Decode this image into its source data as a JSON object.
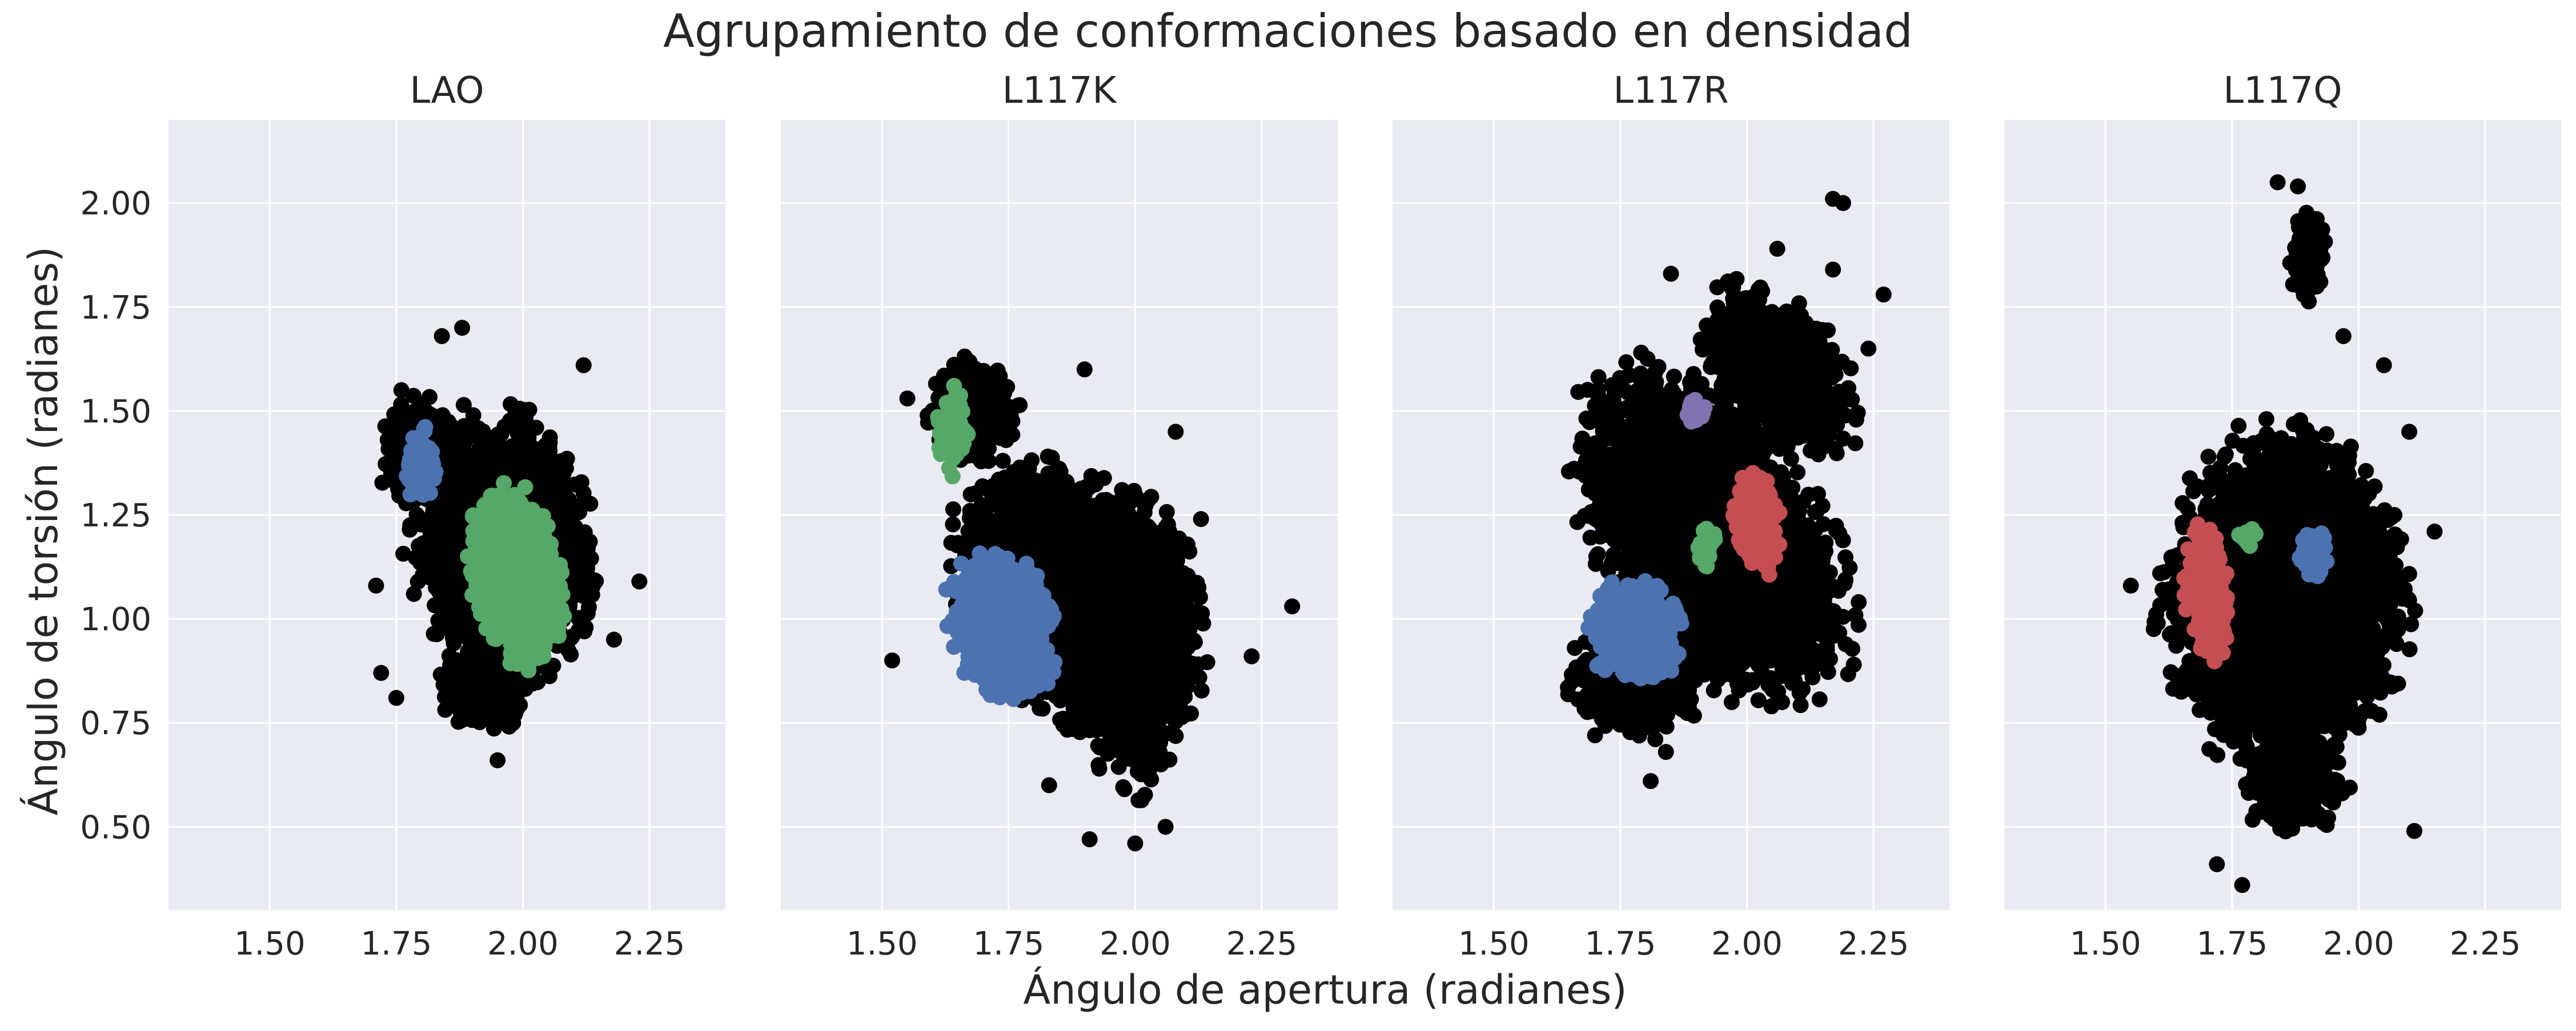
{
  "figure": {
    "suptitle": "Agrupamiento de conformaciones basado en densidad",
    "xlabel": "Ángulo de apertura (radianes)",
    "ylabel": "Ángulo de torsión (radianes)"
  },
  "colors": {
    "background": "#eaeaf2",
    "grid": "#ffffff",
    "noise": "#000000",
    "blue": "#4c72b0",
    "green": "#55a868",
    "red": "#c44e52",
    "purple": "#8172b2",
    "text": "#262626"
  },
  "chart_data": [
    {
      "type": "scatter",
      "title": "LAO",
      "xlim": [
        1.3,
        2.4
      ],
      "ylim": [
        0.3,
        2.2
      ],
      "xticks": [
        "1.50",
        "1.75",
        "2.00",
        "2.25"
      ],
      "yticks": [
        "0.50",
        "0.75",
        "1.00",
        "1.25",
        "1.50",
        "1.75",
        "2.00"
      ],
      "grid": true,
      "clusters": [
        {
          "color": "noise",
          "shape": "ellipse",
          "cx": 1.96,
          "cy": 1.17,
          "rx": 0.2,
          "ry": 0.37,
          "rot": 5,
          "n": 1300
        },
        {
          "color": "noise",
          "shape": "ellipse",
          "cx": 1.8,
          "cy": 1.4,
          "rx": 0.09,
          "ry": 0.15,
          "rot": 0,
          "n": 200
        },
        {
          "color": "noise",
          "shape": "ellipse",
          "cx": 1.93,
          "cy": 0.83,
          "rx": 0.1,
          "ry": 0.12,
          "rot": 0,
          "n": 150
        },
        {
          "color": "blue",
          "shape": "ellipse",
          "cx": 1.8,
          "cy": 1.37,
          "rx": 0.035,
          "ry": 0.1,
          "rot": 0,
          "n": 70
        },
        {
          "color": "green",
          "shape": "ellipse",
          "cx": 1.99,
          "cy": 1.1,
          "rx": 0.1,
          "ry": 0.25,
          "rot": 8,
          "n": 650
        }
      ],
      "outliers": [
        [
          1.88,
          1.7
        ],
        [
          1.84,
          1.68
        ],
        [
          2.12,
          1.61
        ],
        [
          1.71,
          1.08
        ],
        [
          2.18,
          0.95
        ],
        [
          1.72,
          0.87
        ],
        [
          1.75,
          0.81
        ],
        [
          1.95,
          0.66
        ],
        [
          2.23,
          1.09
        ],
        [
          1.76,
          1.55
        ]
      ]
    },
    {
      "type": "scatter",
      "title": "L117K",
      "xlim": [
        1.3,
        2.4
      ],
      "ylim": [
        0.3,
        2.2
      ],
      "xticks": [
        "1.50",
        "1.75",
        "2.00",
        "2.25"
      ],
      "yticks": [],
      "grid": true,
      "clusters": [
        {
          "color": "noise",
          "shape": "ellipse",
          "cx": 1.88,
          "cy": 1.05,
          "rx": 0.24,
          "ry": 0.38,
          "rot": 20,
          "n": 1500
        },
        {
          "color": "noise",
          "shape": "ellipse",
          "cx": 2.0,
          "cy": 0.95,
          "rx": 0.15,
          "ry": 0.4,
          "rot": 0,
          "n": 700
        },
        {
          "color": "noise",
          "shape": "ellipse",
          "cx": 1.68,
          "cy": 1.5,
          "rx": 0.1,
          "ry": 0.14,
          "rot": 0,
          "n": 250
        },
        {
          "color": "blue",
          "shape": "ellipse",
          "cx": 1.74,
          "cy": 0.98,
          "rx": 0.12,
          "ry": 0.2,
          "rot": 10,
          "n": 550
        },
        {
          "color": "green",
          "shape": "ellipse",
          "cx": 1.64,
          "cy": 1.46,
          "rx": 0.035,
          "ry": 0.12,
          "rot": 0,
          "n": 80
        }
      ],
      "outliers": [
        [
          2.31,
          1.03
        ],
        [
          1.9,
          1.6
        ],
        [
          2.23,
          0.91
        ],
        [
          1.91,
          0.47
        ],
        [
          1.83,
          0.6
        ],
        [
          2.0,
          0.46
        ],
        [
          2.06,
          0.5
        ],
        [
          1.55,
          1.53
        ],
        [
          2.13,
          1.24
        ],
        [
          2.08,
          1.45
        ],
        [
          1.52,
          0.9
        ]
      ]
    },
    {
      "type": "scatter",
      "title": "L117R",
      "xlim": [
        1.3,
        2.4
      ],
      "ylim": [
        0.3,
        2.2
      ],
      "xticks": [
        "1.50",
        "1.75",
        "2.00",
        "2.25"
      ],
      "yticks": [],
      "grid": true,
      "clusters": [
        {
          "color": "noise",
          "shape": "ellipse",
          "cx": 1.93,
          "cy": 1.2,
          "rx": 0.25,
          "ry": 0.48,
          "rot": 25,
          "n": 2000
        },
        {
          "color": "noise",
          "shape": "ellipse",
          "cx": 2.06,
          "cy": 1.6,
          "rx": 0.14,
          "ry": 0.25,
          "rot": 30,
          "n": 500
        },
        {
          "color": "noise",
          "shape": "ellipse",
          "cx": 1.78,
          "cy": 0.85,
          "rx": 0.14,
          "ry": 0.15,
          "rot": 0,
          "n": 400
        },
        {
          "color": "blue",
          "shape": "ellipse",
          "cx": 1.78,
          "cy": 0.97,
          "rx": 0.1,
          "ry": 0.14,
          "rot": 0,
          "n": 380
        },
        {
          "color": "red",
          "shape": "ellipse",
          "cx": 2.02,
          "cy": 1.23,
          "rx": 0.05,
          "ry": 0.13,
          "rot": 5,
          "n": 180
        },
        {
          "color": "green",
          "shape": "ellipse",
          "cx": 1.92,
          "cy": 1.17,
          "rx": 0.02,
          "ry": 0.06,
          "rot": 0,
          "n": 25
        },
        {
          "color": "purple",
          "shape": "ellipse",
          "cx": 1.9,
          "cy": 1.5,
          "rx": 0.03,
          "ry": 0.04,
          "rot": 0,
          "n": 20
        }
      ],
      "outliers": [
        [
          2.17,
          2.01
        ],
        [
          2.19,
          2.0
        ],
        [
          2.27,
          1.78
        ],
        [
          2.24,
          1.65
        ],
        [
          1.85,
          1.83
        ],
        [
          1.66,
          0.93
        ],
        [
          1.7,
          0.72
        ],
        [
          1.84,
          0.68
        ],
        [
          1.81,
          0.61
        ],
        [
          2.17,
          1.84
        ],
        [
          2.06,
          1.89
        ],
        [
          2.12,
          1.53
        ]
      ]
    },
    {
      "type": "scatter",
      "title": "L117Q",
      "xlim": [
        1.3,
        2.4
      ],
      "ylim": [
        0.3,
        2.2
      ],
      "xticks": [
        "1.50",
        "1.75",
        "2.00",
        "2.25"
      ],
      "yticks": [],
      "grid": true,
      "clusters": [
        {
          "color": "noise",
          "shape": "ellipse",
          "cx": 1.85,
          "cy": 1.05,
          "rx": 0.27,
          "ry": 0.45,
          "rot": 0,
          "n": 2200
        },
        {
          "color": "noise",
          "shape": "ellipse",
          "cx": 1.9,
          "cy": 1.87,
          "rx": 0.04,
          "ry": 0.12,
          "rot": 0,
          "n": 120
        },
        {
          "color": "noise",
          "shape": "ellipse",
          "cx": 1.87,
          "cy": 0.6,
          "rx": 0.12,
          "ry": 0.12,
          "rot": 0,
          "n": 200
        },
        {
          "color": "red",
          "shape": "ellipse",
          "cx": 1.7,
          "cy": 1.06,
          "rx": 0.05,
          "ry": 0.18,
          "rot": 5,
          "n": 220
        },
        {
          "color": "blue",
          "shape": "ellipse",
          "cx": 1.91,
          "cy": 1.16,
          "rx": 0.03,
          "ry": 0.08,
          "rot": 0,
          "n": 50
        },
        {
          "color": "green",
          "shape": "ellipse",
          "cx": 1.78,
          "cy": 1.2,
          "rx": 0.02,
          "ry": 0.03,
          "rot": 0,
          "n": 15
        }
      ],
      "outliers": [
        [
          1.84,
          2.05
        ],
        [
          1.88,
          2.04
        ],
        [
          1.77,
          0.36
        ],
        [
          1.72,
          0.41
        ],
        [
          2.15,
          1.21
        ],
        [
          2.1,
          1.45
        ],
        [
          1.55,
          1.08
        ],
        [
          2.11,
          0.49
        ],
        [
          1.81,
          0.8
        ],
        [
          1.97,
          1.68
        ],
        [
          2.05,
          1.61
        ]
      ]
    }
  ]
}
